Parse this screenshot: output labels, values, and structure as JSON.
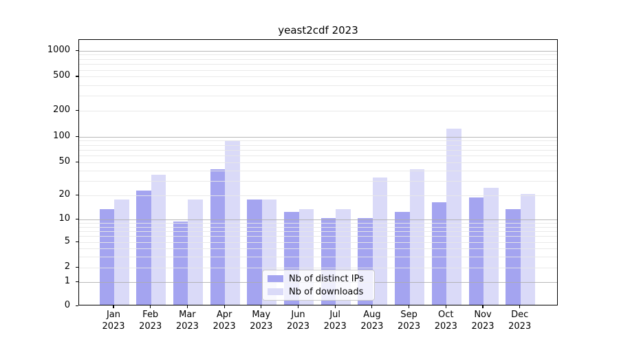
{
  "chart_data": {
    "type": "bar",
    "title": "yeast2cdf 2023",
    "categories": [
      "Jan 2023",
      "Feb 2023",
      "Mar 2023",
      "Apr 2023",
      "May 2023",
      "Jun 2023",
      "Jul 2023",
      "Aug 2023",
      "Sep 2023",
      "Oct 2023",
      "Nov 2023",
      "Dec 2023"
    ],
    "series": [
      {
        "name": "Nb of distinct IPs",
        "color": "#a4a4f0",
        "values": [
          13,
          22,
          9,
          40,
          17,
          12,
          10,
          10,
          12,
          16,
          18,
          13
        ]
      },
      {
        "name": "Nb of downloads",
        "color": "#dadaf8",
        "values": [
          17,
          34,
          17,
          85,
          17,
          13,
          13,
          32,
          40,
          120,
          24,
          20
        ]
      }
    ],
    "ylabel": "",
    "xlabel": "",
    "yticks": [
      0,
      1,
      2,
      5,
      10,
      20,
      50,
      100,
      200,
      500,
      1000
    ],
    "major_grid_values": [
      1,
      10,
      100,
      1000
    ],
    "ylim": [
      0,
      1300
    ],
    "yscale": "pseudo-log",
    "grid": "horizontal major and minor gridlines, drawn over bars",
    "legend_position": "lower center inside plot",
    "legend_border_color": "#c9c9c9",
    "axis_color": "#000000"
  }
}
